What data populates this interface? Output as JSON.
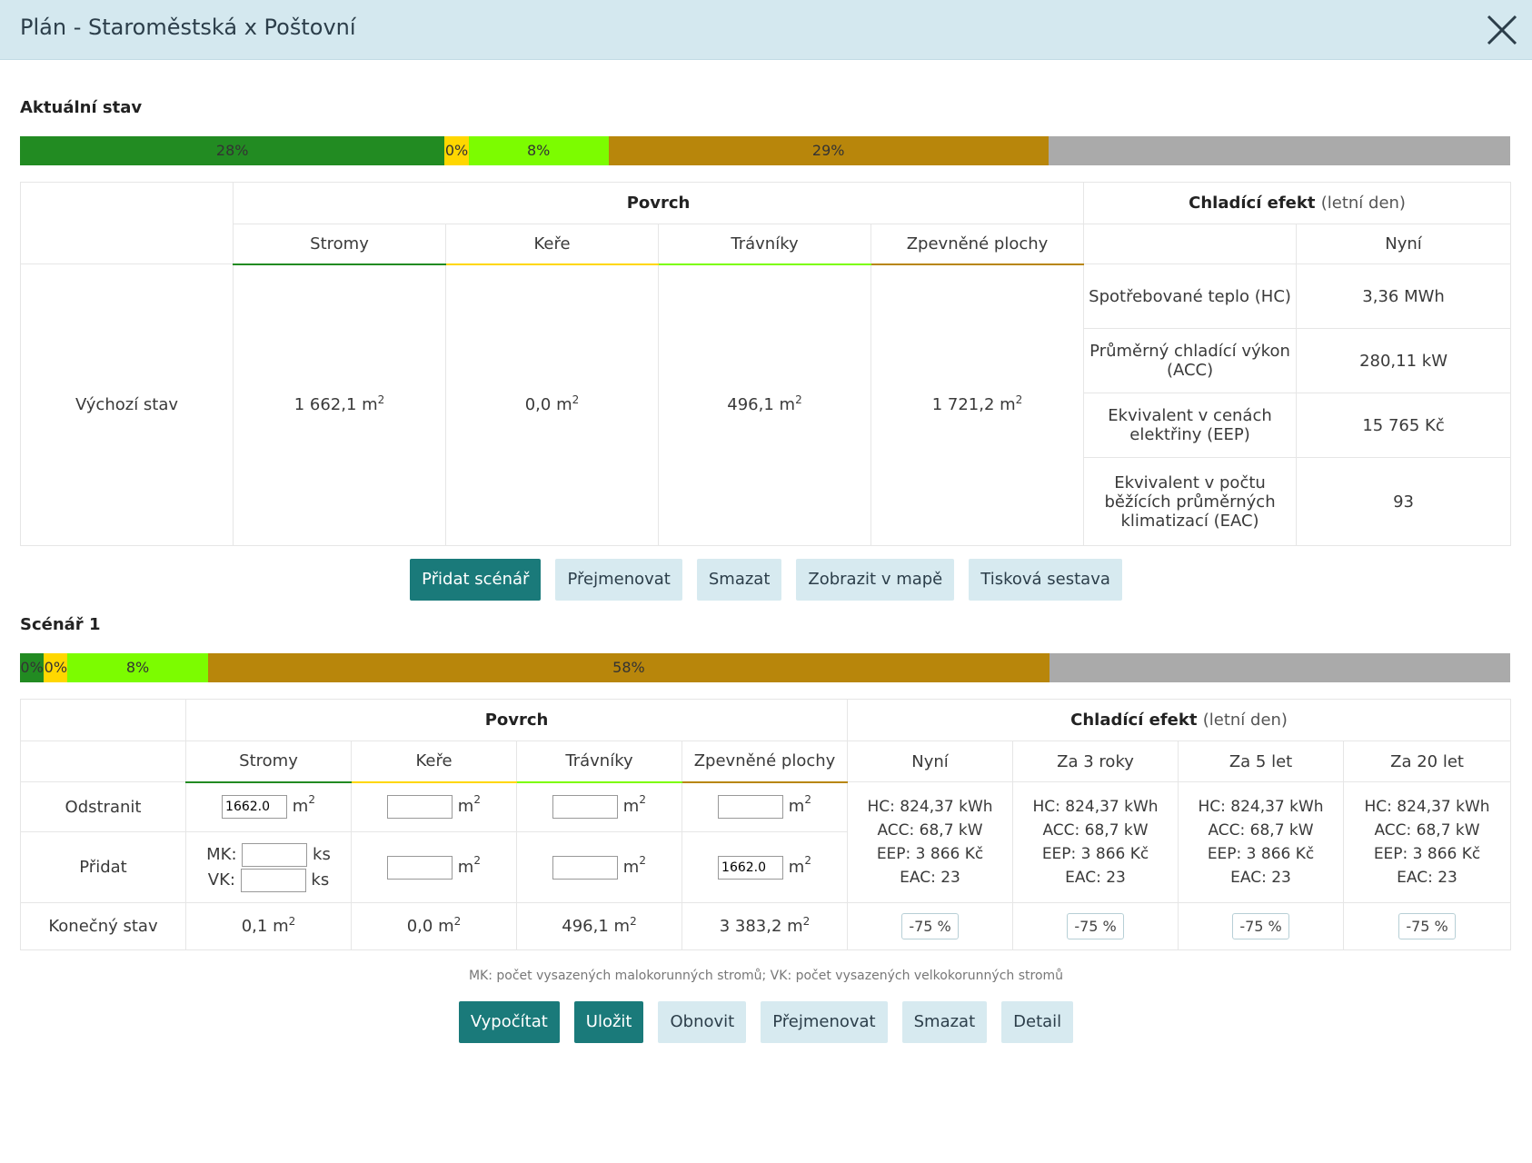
{
  "header": {
    "title": "Plán - Staroměstská x Poštovní"
  },
  "current": {
    "title": "Aktuální stav",
    "bar": [
      {
        "key": "trees",
        "label": "28%",
        "pct": 28.5
      },
      {
        "key": "shrubs",
        "label": "0%",
        "pct": 1.6
      },
      {
        "key": "lawns",
        "label": "8%",
        "pct": 9.4
      },
      {
        "key": "paved",
        "label": "29%",
        "pct": 29.5
      },
      {
        "key": "rest",
        "label": "",
        "pct": 31.0
      }
    ],
    "table": {
      "povrch": "Povrch",
      "chladici": "Chladící efekt",
      "letni_den": "(letní den)",
      "col_trees": "Stromy",
      "col_shrubs": "Keře",
      "col_lawns": "Trávníky",
      "col_paved": "Zpevněné plochy",
      "col_now": "Nyní",
      "row_label": "Výchozí stav",
      "trees_val": "1 662,1 m",
      "shrubs_val": "0,0 m",
      "lawns_val": "496,1 m",
      "paved_val": "1 721,2 m",
      "sup": "2",
      "metrics": [
        {
          "label": "Spotřebované teplo (HC)",
          "value": "3,36 MWh"
        },
        {
          "label": "Průměrný chladící výkon (ACC)",
          "value": "280,11 kW"
        },
        {
          "label": "Ekvivalent v cenách elektřiny (EEP)",
          "value": "15 765 Kč"
        },
        {
          "label": "Ekvivalent v počtu běžících průměrných klimatizací (EAC)",
          "value": "93"
        }
      ]
    },
    "buttons": {
      "add": "Přidat scénář",
      "rename": "Přejmenovat",
      "delete": "Smazat",
      "map": "Zobrazit v mapě",
      "print": "Tisková sestava"
    }
  },
  "scenario": {
    "title": "Scénář 1",
    "bar": [
      {
        "key": "trees",
        "label": "0%",
        "pct": 1.6
      },
      {
        "key": "shrubs",
        "label": "0%",
        "pct": 1.6
      },
      {
        "key": "lawns",
        "label": "8%",
        "pct": 9.4
      },
      {
        "key": "paved",
        "label": "58%",
        "pct": 56.5
      },
      {
        "key": "rest",
        "label": "",
        "pct": 30.9
      }
    ],
    "table": {
      "povrch": "Povrch",
      "chladici": "Chladící efekt",
      "letni_den": "(letní den)",
      "col_trees": "Stromy",
      "col_shrubs": "Keře",
      "col_lawns": "Trávníky",
      "col_paved": "Zpevněné plochy",
      "col_now": "Nyní",
      "col_3y": "Za 3 roky",
      "col_5y": "Za 5 let",
      "col_20y": "Za 20 let",
      "row_remove": "Odstranit",
      "row_add": "Přidat",
      "row_final": "Konečný stav",
      "remove_trees": "1662.0",
      "remove_shrubs": "",
      "remove_lawns": "",
      "remove_paved": "",
      "add_mk_label": "MK:",
      "add_vk_label": "VK:",
      "add_mk": "",
      "add_vk": "",
      "add_shrubs": "",
      "add_lawns": "",
      "add_paved": "1662.0",
      "unit_m": "m",
      "unit_ks": "ks",
      "sup": "2",
      "final_trees": "0,1 m",
      "final_shrubs": "0,0 m",
      "final_lawns": "496,1 m",
      "final_paved": "3 383,2 m",
      "results": {
        "hc": "HC: 824,37 kWh",
        "acc": "ACC: 68,7 kW",
        "eep": "EEP: 3 866 Kč",
        "eac": "EAC: 23"
      },
      "pct": "-75 %"
    },
    "note": "MK: počet vysazených malokorunných stromů; VK: počet vysazených velkokorunných stromů",
    "buttons": {
      "calc": "Vypočítat",
      "save": "Uložit",
      "refresh": "Obnovit",
      "rename": "Přejmenovat",
      "delete": "Smazat",
      "detail": "Detail"
    }
  }
}
